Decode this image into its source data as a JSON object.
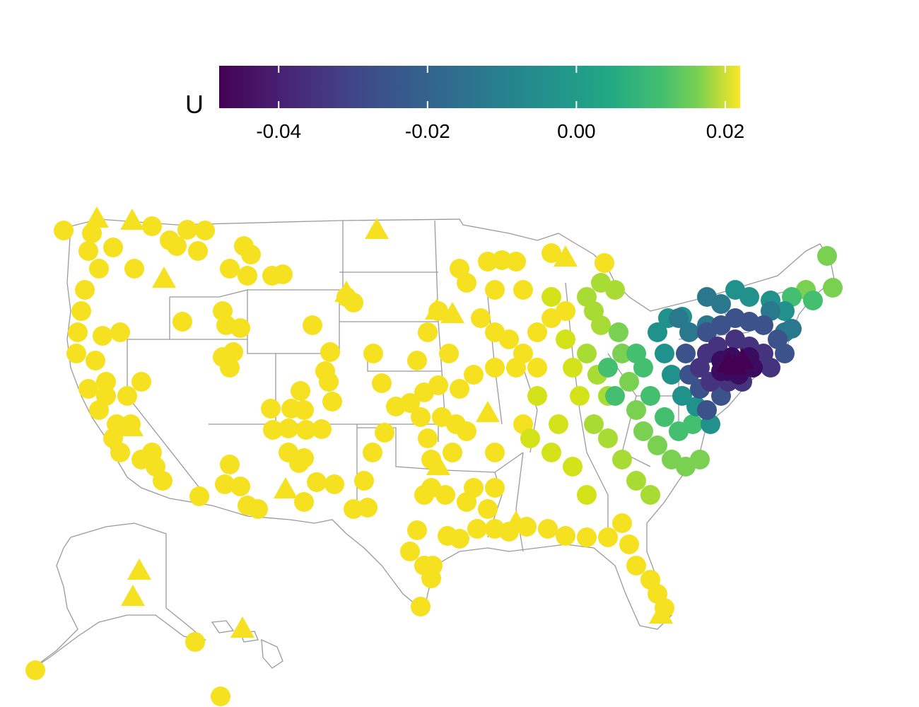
{
  "legend": {
    "title": "U",
    "min": -0.048,
    "max": 0.022,
    "ticks": [
      -0.04,
      -0.02,
      0.0,
      0.02
    ],
    "tick_labels": [
      "-0.04",
      "-0.02",
      "0.00",
      "0.02"
    ],
    "palette": [
      "#440154",
      "#3b528b",
      "#21908c",
      "#5dc863",
      "#fde725"
    ]
  },
  "map": {
    "region": "United States",
    "insets": [
      "Alaska",
      "Hawaii"
    ],
    "marker_shapes": [
      "circle",
      "triangle"
    ],
    "state_border_color": "#9a9a9a"
  }
}
